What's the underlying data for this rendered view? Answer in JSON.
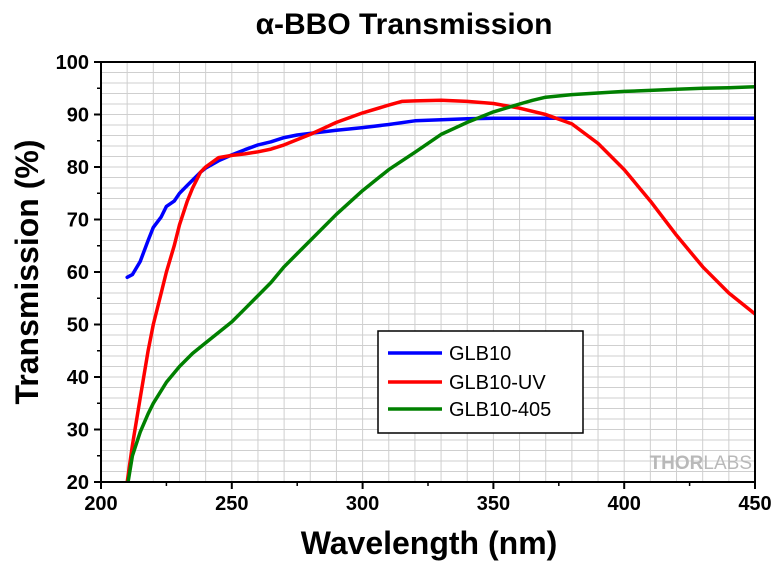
{
  "chart_data": {
    "type": "line",
    "title": "α-BBO Transmission",
    "xlabel": "Wavelength (nm)",
    "ylabel": "Transmission (%)",
    "xlim": [
      200,
      450
    ],
    "ylim": [
      20,
      100
    ],
    "xticks": [
      200,
      250,
      300,
      350,
      400,
      450
    ],
    "yticks": [
      20,
      30,
      40,
      50,
      60,
      70,
      80,
      90,
      100
    ],
    "grid": true,
    "legend_position": "lower-center",
    "series": [
      {
        "name": "GLB10",
        "color": "#0000ff",
        "x": [
          210,
          212,
          215,
          218,
          220,
          223,
          225,
          228,
          230,
          233,
          235,
          238,
          240,
          245,
          250,
          255,
          260,
          265,
          270,
          275,
          280,
          290,
          300,
          310,
          320,
          330,
          340,
          350,
          360,
          380,
          400,
          420,
          450
        ],
        "y": [
          59,
          59.5,
          62,
          66,
          68.5,
          70.5,
          72.5,
          73.5,
          75,
          76.5,
          77.5,
          79,
          79.8,
          81.2,
          82.3,
          83.3,
          84.2,
          84.8,
          85.6,
          86.1,
          86.4,
          87,
          87.5,
          88.1,
          88.8,
          89,
          89.2,
          89.3,
          89.3,
          89.3,
          89.3,
          89.3,
          89.3
        ]
      },
      {
        "name": "GLB10-UV",
        "color": "#ff0000",
        "x": [
          210,
          212,
          215,
          218,
          220,
          223,
          225,
          228,
          230,
          233,
          235,
          238,
          240,
          245,
          250,
          255,
          260,
          265,
          270,
          280,
          290,
          300,
          310,
          315,
          320,
          330,
          340,
          350,
          360,
          370,
          380,
          390,
          400,
          410,
          420,
          430,
          440,
          450
        ],
        "y": [
          20,
          27,
          36,
          45,
          50,
          56,
          60,
          65,
          69,
          73.5,
          76,
          79,
          80,
          81.8,
          82.2,
          82.5,
          82.9,
          83.4,
          84.2,
          86.2,
          88.5,
          90.3,
          91.8,
          92.5,
          92.6,
          92.7,
          92.5,
          92.1,
          91.2,
          90,
          88.2,
          84.5,
          79.5,
          73.5,
          67,
          61,
          56,
          52
        ]
      },
      {
        "name": "GLB10-405",
        "color": "#008000",
        "x": [
          210,
          212,
          215,
          218,
          220,
          225,
          230,
          235,
          240,
          245,
          250,
          255,
          260,
          265,
          270,
          275,
          280,
          290,
          300,
          310,
          320,
          330,
          340,
          350,
          360,
          365,
          370,
          380,
          390,
          400,
          410,
          420,
          430,
          440,
          450
        ],
        "y": [
          19,
          25,
          29.5,
          33,
          35,
          39,
          42,
          44.5,
          46.5,
          48.5,
          50.5,
          53,
          55.5,
          58,
          61,
          63.5,
          66,
          71,
          75.5,
          79.5,
          82.8,
          86.2,
          88.5,
          90.5,
          92,
          92.7,
          93.3,
          93.8,
          94.1,
          94.4,
          94.6,
          94.8,
          95,
          95.1,
          95.3
        ]
      }
    ]
  },
  "watermark": {
    "brand_bold": "THOR",
    "brand_light": "LABS"
  }
}
